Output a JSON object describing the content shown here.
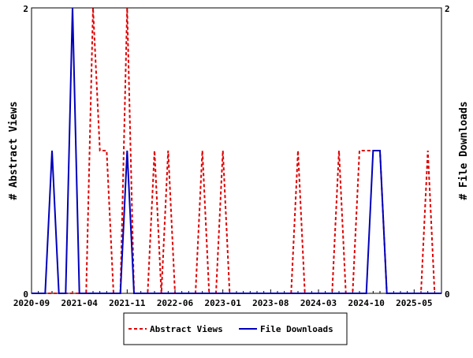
{
  "chart_data": {
    "type": "line",
    "title": "",
    "xlabel": "",
    "ylabel_left": "# Abstract Views",
    "ylabel_right": "# File Downloads",
    "ylim": [
      0,
      2
    ],
    "y_ticks_left": [
      "0",
      "2"
    ],
    "y_ticks_right": [
      "0",
      "2"
    ],
    "x_start": "2020-09",
    "x_step": "month",
    "x_tick_labels": [
      "2020-09",
      "2021-04",
      "2021-11",
      "2022-06",
      "2023-01",
      "2023-08",
      "2024-03",
      "2024-10",
      "2025-05"
    ],
    "legend": {
      "placement": "bottom-center"
    },
    "series": [
      {
        "name": "Abstract Views",
        "color": "#dd0000",
        "style": "dashed",
        "values": [
          0,
          0,
          0,
          0,
          0,
          0,
          0,
          0,
          0,
          2,
          1,
          1,
          0,
          0,
          2,
          0,
          0,
          0,
          1,
          0,
          1,
          0,
          0,
          0,
          0,
          1,
          0,
          0,
          1,
          0,
          0,
          0,
          0,
          0,
          0,
          0,
          0,
          0,
          0,
          1,
          0,
          0,
          0,
          0,
          0,
          1,
          0,
          0,
          1,
          1,
          1,
          1,
          0,
          0,
          0,
          0,
          0,
          0,
          1,
          0,
          0
        ]
      },
      {
        "name": "File Downloads",
        "color": "#0000bb",
        "style": "solid",
        "values": [
          0,
          0,
          0,
          1,
          0,
          0,
          2,
          0,
          0,
          0,
          0,
          0,
          0,
          0,
          1,
          0,
          0,
          0,
          0,
          0,
          0,
          0,
          0,
          0,
          0,
          0,
          0,
          0,
          0,
          0,
          0,
          0,
          0,
          0,
          0,
          0,
          0,
          0,
          0,
          0,
          0,
          0,
          0,
          0,
          0,
          0,
          0,
          0,
          0,
          0,
          1,
          1,
          0,
          0,
          0,
          0,
          0,
          0,
          0,
          0,
          0
        ]
      }
    ]
  }
}
